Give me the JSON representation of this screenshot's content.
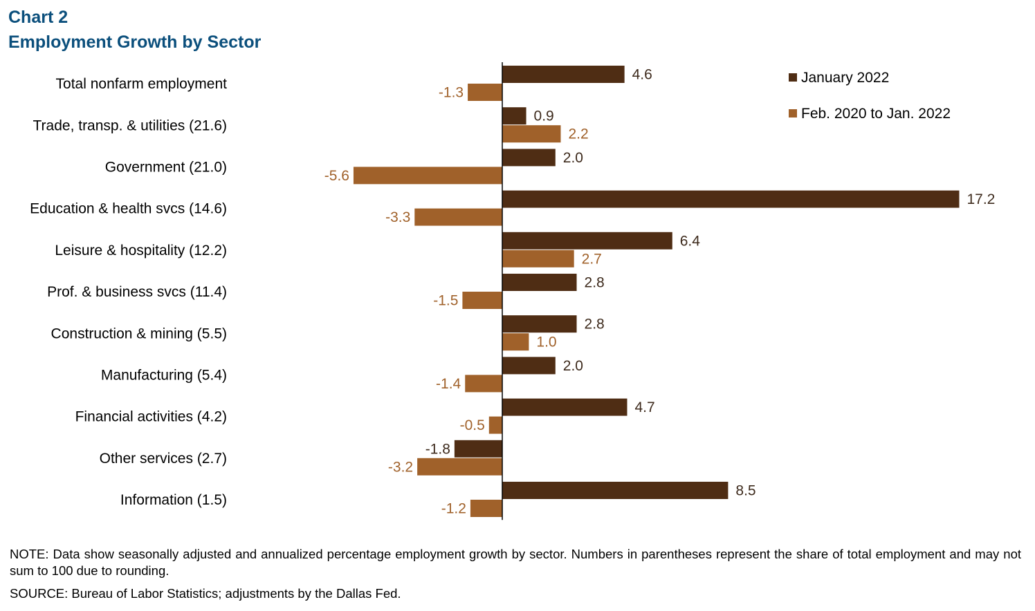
{
  "chart_data": {
    "type": "bar",
    "orientation": "horizontal",
    "title_line1": "Chart 2",
    "title_line2": "Employment Growth by Sector",
    "categories": [
      "Total nonfarm employment",
      "Trade, transp. & utilities (21.6)",
      "Government (21.0)",
      "Education & health svcs (14.6)",
      "Leisure & hospitality (12.2)",
      "Prof. & business svcs (11.4)",
      "Construction & mining (5.5)",
      "Manufacturing (5.4)",
      "Financial activities (4.2)",
      "Other services (2.7)",
      "Information (1.5)"
    ],
    "series": [
      {
        "name": "January 2022",
        "color": "#4f2d14",
        "values": [
          4.6,
          0.9,
          2.0,
          17.2,
          6.4,
          2.8,
          2.8,
          2.0,
          4.7,
          -1.8,
          8.5
        ],
        "labels": [
          "4.6",
          "0.9",
          "2.0",
          "17.2",
          "6.4",
          "2.8",
          "2.8",
          "2.0",
          "4.7",
          "-1.8",
          "8.5"
        ],
        "label_color": "#3d2a1c"
      },
      {
        "name": "Feb. 2020 to Jan. 2022",
        "color": "#a0612a",
        "values": [
          -1.3,
          2.2,
          -5.6,
          -3.3,
          2.7,
          -1.5,
          1.0,
          -1.4,
          -0.5,
          -3.2,
          -1.2
        ],
        "labels": [
          "-1.3",
          "2.2",
          "-5.6",
          "-3.3",
          "2.7",
          "-1.5",
          "1.0",
          "-1.4",
          "-0.5",
          "-3.2",
          "-1.2"
        ],
        "label_color": "#a0612a"
      }
    ],
    "legend_position": "top-right",
    "xlim": [
      -7.6,
      19.2
    ],
    "grid": false
  },
  "note": "NOTE: Data show seasonally adjusted and annualized percentage employment growth by sector. Numbers in parentheses represent the share of total employment and may not sum to 100 due to rounding.",
  "source": "SOURCE: Bureau of Labor Statistics; adjustments by the Dallas Fed."
}
